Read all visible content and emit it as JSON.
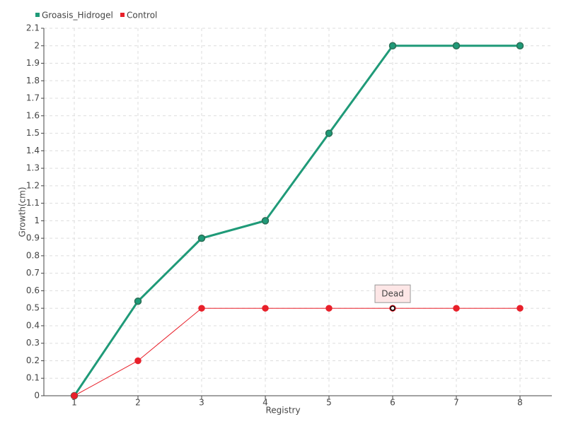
{
  "chart_data": {
    "type": "line",
    "xlabel": "Registry",
    "ylabel": "Growth(cm)",
    "categories": [
      "1",
      "2",
      "3",
      "4",
      "5",
      "6",
      "7",
      "8"
    ],
    "series": [
      {
        "name": "Groasis_Hidrogel",
        "color": "#1f9a78",
        "values": [
          0,
          0.54,
          0.9,
          1,
          1.5,
          2,
          2,
          2
        ]
      },
      {
        "name": "Control",
        "color": "#e8202a",
        "values": [
          0,
          0.2,
          0.5,
          0.5,
          0.5,
          0.5,
          0.5,
          0.5
        ]
      }
    ],
    "annotations": [
      {
        "text": "Dead",
        "x": "6",
        "y": 0.5
      }
    ],
    "ylim": [
      0,
      2.1
    ],
    "yticks": [
      0,
      0.1,
      0.2,
      0.3,
      0.4,
      0.5,
      0.6,
      0.7,
      0.8,
      0.9,
      1,
      1.1,
      1.2,
      1.3,
      1.4,
      1.5,
      1.6,
      1.7,
      1.8,
      1.9,
      2,
      2.1
    ],
    "grid": true,
    "legend": "top-left"
  }
}
